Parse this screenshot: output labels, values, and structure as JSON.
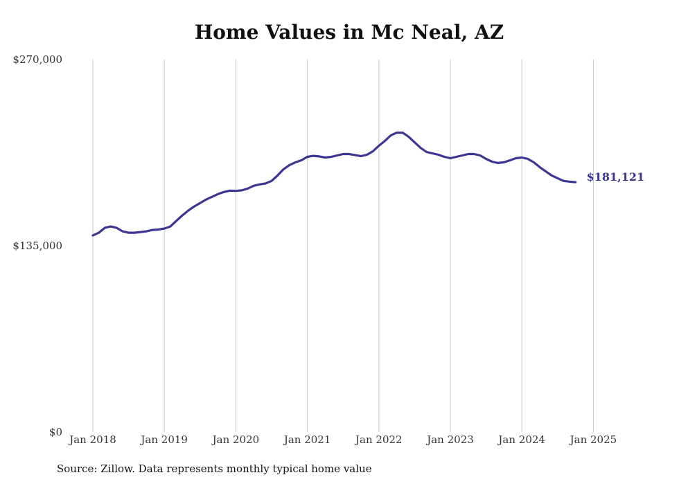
{
  "chart_data": {
    "type": "line",
    "title": "Home Values in Mc Neal, AZ",
    "xlabel": "",
    "ylabel": "",
    "ylim": [
      0,
      270000
    ],
    "y_ticks": [
      {
        "value": 0,
        "label": "$0"
      },
      {
        "value": 135000,
        "label": "$135,000"
      },
      {
        "value": 270000,
        "label": "$270,000"
      }
    ],
    "x_ticks": [
      "Jan 2018",
      "Jan 2019",
      "Jan 2020",
      "Jan 2021",
      "Jan 2022",
      "Jan 2023",
      "Jan 2024",
      "Jan 2025"
    ],
    "x_start": "Jan 2018",
    "x_end": "Mar 2025",
    "grid": "vertical",
    "color": "#3d3591",
    "end_label": "$181,121",
    "series": [
      {
        "values": [
          142500,
          144500,
          148000,
          149000,
          148000,
          145500,
          144500,
          144500,
          145000,
          145500,
          146500,
          146800,
          147500,
          149000,
          153000,
          157000,
          160500,
          163500,
          166000,
          168500,
          170500,
          172500,
          174000,
          175000,
          174800,
          175200,
          176500,
          178500,
          179500,
          180200,
          182000,
          186000,
          190500,
          193500,
          195500,
          197000,
          199500,
          200200,
          199800,
          199000,
          199500,
          200500,
          201500,
          201500,
          200800,
          200000,
          201000,
          203500,
          207500,
          211000,
          215000,
          217000,
          217000,
          214000,
          210000,
          206000,
          203000,
          202000,
          201000,
          199500,
          198500,
          199500,
          200500,
          201500,
          201500,
          200500,
          198000,
          196000,
          195000,
          195500,
          197000,
          198500,
          199000,
          198000,
          195500,
          192000,
          189000,
          186000,
          184000,
          182000,
          181500,
          181121
        ]
      }
    ]
  },
  "source_note": "Source: Zillow. Data represents monthly typical home value"
}
